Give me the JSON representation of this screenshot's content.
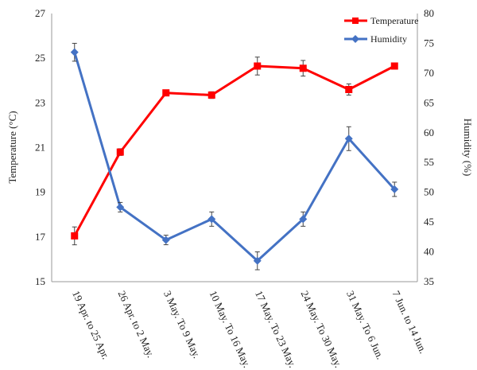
{
  "chart_data": {
    "type": "line",
    "categories": [
      "19 Apr. to 25 Apr.",
      "26 Apr. to 2 May.",
      "3 May. To 9 May.",
      "10 May. To 16 May.",
      "17 May. To 23 May.",
      "24 May. To 30 May.",
      "31 May. To 6 Jun.",
      "7 Jun. to 14 Jun."
    ],
    "series": [
      {
        "name": "Temperature",
        "axis": "left",
        "color": "#ff0000",
        "marker": "square",
        "values": [
          17.05,
          20.8,
          23.45,
          23.35,
          24.65,
          24.55,
          23.6,
          24.65
        ],
        "errors": [
          0.4,
          0.15,
          0.1,
          0.15,
          0.4,
          0.35,
          0.25,
          0.1
        ]
      },
      {
        "name": "Humidity",
        "axis": "right",
        "color": "#4472c4",
        "marker": "diamond",
        "values": [
          73.5,
          47.5,
          42.0,
          45.5,
          38.5,
          45.5,
          59.0,
          50.5
        ],
        "errors": [
          1.5,
          0.8,
          0.8,
          1.2,
          1.5,
          1.2,
          2.0,
          1.2
        ]
      }
    ],
    "ylabel": "Temperature (°C)",
    "y2label": "Humidity (%)",
    "ylim": [
      15,
      27
    ],
    "y2lim": [
      35,
      80
    ],
    "yticks": [
      15,
      17,
      19,
      21,
      23,
      25,
      27
    ],
    "y2ticks": [
      35,
      40,
      45,
      50,
      55,
      60,
      65,
      70,
      75,
      80
    ],
    "grid": false,
    "legend_position": "top-right"
  }
}
